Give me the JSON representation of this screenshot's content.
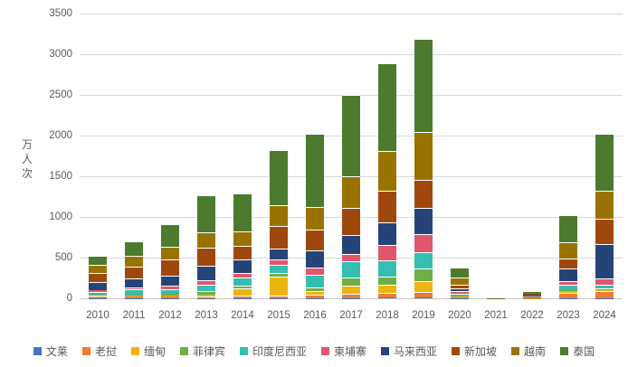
{
  "y_axis": {
    "title": "万人次"
  },
  "chart_data": {
    "type": "bar",
    "stacked": true,
    "title": "",
    "xlabel": "",
    "ylabel": "万人次",
    "unit": "万人次",
    "ylim": [
      0,
      3500
    ],
    "yticks": [
      0,
      500,
      1000,
      1500,
      2000,
      2500,
      3000,
      3500
    ],
    "grid": true,
    "legend_position": "bottom",
    "categories": [
      "2010",
      "2011",
      "2012",
      "2013",
      "2014",
      "2015",
      "2016",
      "2017",
      "2018",
      "2019",
      "2020",
      "2021",
      "2022",
      "2023",
      "2024"
    ],
    "series": [
      {
        "name": "文莱",
        "color": "#4472C4",
        "values": [
          2,
          2,
          2,
          2,
          3,
          4,
          4,
          4,
          6,
          7,
          1,
          0,
          0,
          2,
          5
        ]
      },
      {
        "name": "老挝",
        "color": "#ED7D31",
        "values": [
          17,
          18,
          20,
          25,
          30,
          33,
          40,
          52,
          57,
          71,
          12,
          1,
          5,
          65,
          80
        ]
      },
      {
        "name": "缅甸",
        "color": "#EDB411",
        "values": [
          9,
          12,
          15,
          21,
          85,
          228,
          45,
          96,
          104,
          133,
          15,
          0,
          3,
          20,
          10
        ]
      },
      {
        "name": "菲律宾",
        "color": "#70AD47",
        "values": [
          15,
          18,
          16,
          43,
          38,
          44,
          45,
          103,
          97,
          156,
          8,
          0,
          3,
          22,
          23
        ]
      },
      {
        "name": "印度尼西亚",
        "color": "#33BEB0",
        "values": [
          40,
          57,
          63,
          81,
          97,
          103,
          150,
          200,
          207,
          199,
          25,
          0,
          14,
          55,
          50
        ]
      },
      {
        "name": "柬埔寨",
        "color": "#E0566F",
        "values": [
          18,
          25,
          37,
          46,
          60,
          67,
          89,
          95,
          185,
          226,
          25,
          0,
          5,
          45,
          74
        ]
      },
      {
        "name": "马来西亚",
        "color": "#264478",
        "values": [
          100,
          110,
          127,
          179,
          160,
          134,
          215,
          226,
          282,
          315,
          40,
          0,
          12,
          163,
          430
        ]
      },
      {
        "name": "新加坡",
        "color": "#9E480E",
        "values": [
          108,
          150,
          195,
          227,
          170,
          275,
          252,
          333,
          380,
          352,
          40,
          1,
          14,
          122,
          304
        ]
      },
      {
        "name": "越南",
        "color": "#997300",
        "values": [
          100,
          133,
          156,
          190,
          180,
          259,
          278,
          389,
          490,
          589,
          90,
          0,
          9,
          192,
          341
        ]
      },
      {
        "name": "泰国",
        "color": "#4C7A2E",
        "values": [
          113,
          178,
          278,
          450,
          463,
          680,
          900,
          1000,
          1080,
          1145,
          118,
          1,
          16,
          340,
          703
        ]
      }
    ]
  }
}
